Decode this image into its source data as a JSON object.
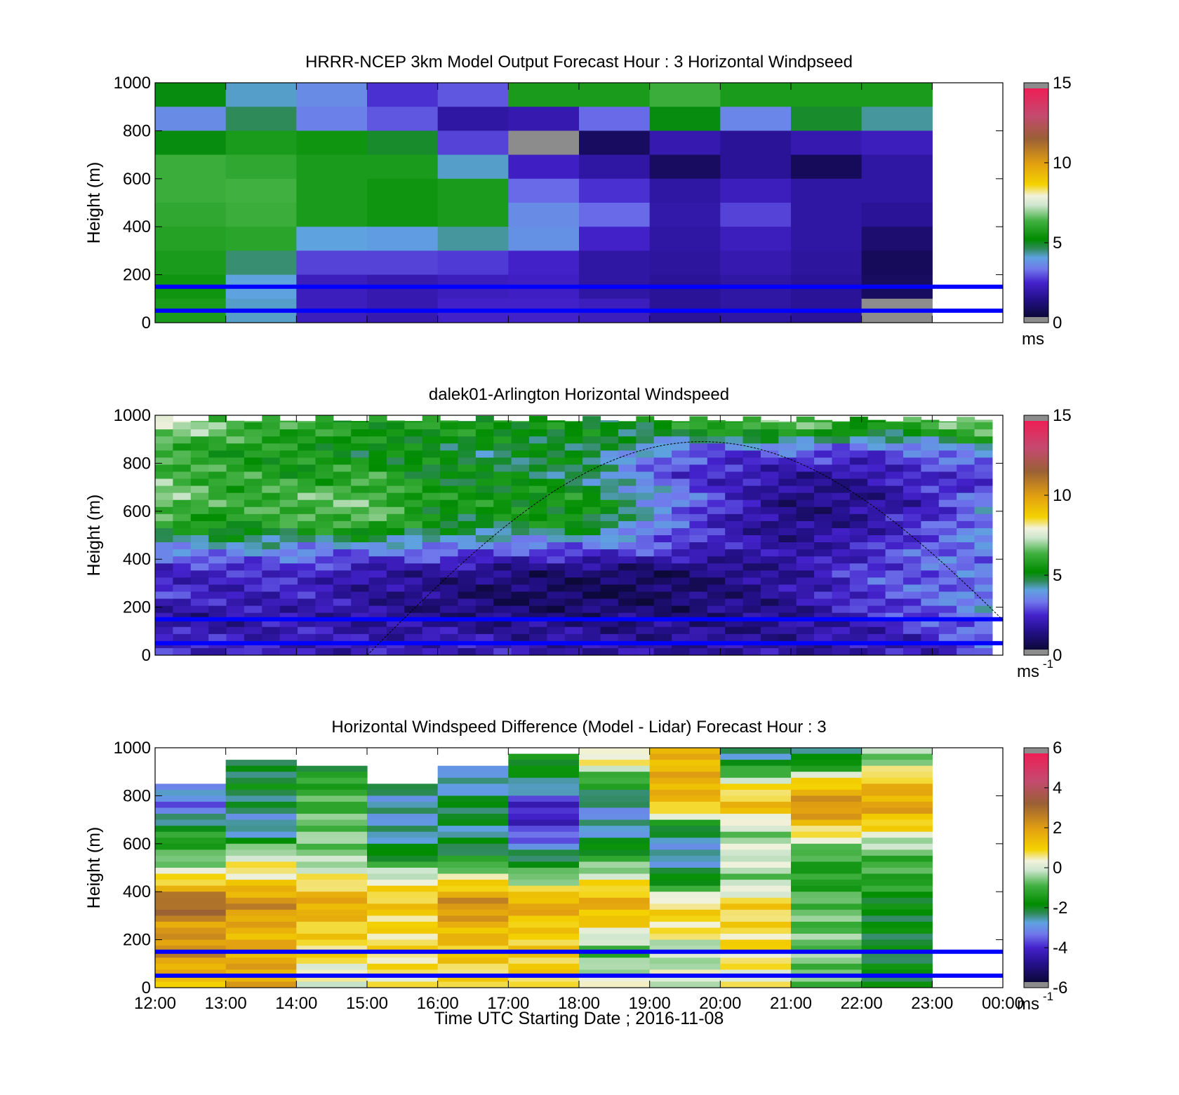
{
  "figure": {
    "xlabel": "Time UTC  Starting Date ; 2016-11-08",
    "x_tick_labels": [
      "12:00",
      "13:00",
      "14:00",
      "15:00",
      "16:00",
      "17:00",
      "18:00",
      "19:00",
      "20:00",
      "21:00",
      "22:00",
      "23:00",
      "00:00"
    ]
  },
  "chart_data": [
    {
      "type": "heatmap",
      "title": "HRRR-NCEP 3km Model Output   Forecast Hour : 3 Horizontal Windpseed",
      "xlabel": "",
      "ylabel": "Height (m)",
      "x_range": [
        "12:00",
        "00:00"
      ],
      "ylim": [
        0,
        1000
      ],
      "y_ticks": [
        0,
        200,
        400,
        600,
        800,
        1000
      ],
      "colorbar": {
        "min": 0,
        "max": 15,
        "ticks": [
          0,
          5,
          10,
          15
        ],
        "unit": "ms",
        "unit_exp": ""
      },
      "hlines_m": [
        150,
        50
      ],
      "hline_color": "#0000ff",
      "columns": [
        "12:00",
        "13:00",
        "14:00",
        "15:00",
        "16:00",
        "17:00",
        "18:00",
        "19:00",
        "20:00",
        "21:00",
        "22:00"
      ],
      "rows_top_m": [
        1000,
        900,
        800,
        700,
        600,
        500,
        400,
        300,
        200,
        100
      ],
      "values": [
        [
          5.0,
          4.0,
          3.5,
          2.4,
          2.8,
          5.6,
          5.6,
          6.2,
          5.6,
          5.6,
          5.6
        ],
        [
          3.5,
          4.5,
          3.3,
          2.8,
          1.6,
          1.8,
          3.0,
          5.0,
          3.4,
          4.8,
          4.2
        ],
        [
          5.0,
          5.6,
          5.4,
          4.8,
          2.6,
          null,
          0.6,
          1.8,
          1.4,
          1.8,
          2.0
        ],
        [
          6.2,
          6.0,
          5.6,
          5.6,
          4.0,
          2.1,
          1.6,
          0.6,
          1.4,
          0.5,
          1.6
        ],
        [
          6.2,
          6.3,
          5.6,
          5.4,
          5.6,
          3.0,
          2.4,
          1.6,
          2.0,
          1.6,
          1.6
        ],
        [
          6.0,
          6.2,
          5.6,
          5.4,
          5.6,
          3.5,
          3.0,
          1.7,
          2.6,
          1.6,
          1.4
        ],
        [
          5.8,
          5.9,
          3.9,
          3.8,
          4.2,
          3.6,
          2.2,
          1.6,
          2.0,
          1.6,
          0.8
        ],
        [
          5.6,
          4.4,
          2.6,
          2.6,
          2.5,
          2.2,
          1.6,
          1.5,
          1.8,
          1.5,
          0.5
        ],
        [
          5.4,
          3.9,
          2.0,
          1.8,
          2.0,
          2.1,
          1.6,
          1.4,
          1.6,
          1.4,
          0.6
        ],
        [
          5.6,
          4.0,
          2.0,
          1.8,
          2.2,
          2.2,
          2.0,
          1.4,
          1.6,
          1.4,
          null
        ]
      ]
    },
    {
      "type": "heatmap",
      "title": "dalek01-Arlington  Horizontal Windspeed",
      "xlabel": "",
      "ylabel": "Height (m)",
      "x_range": [
        "12:00",
        "00:00"
      ],
      "ylim": [
        0,
        1000
      ],
      "y_ticks": [
        0,
        200,
        400,
        600,
        800,
        1000
      ],
      "colorbar": {
        "min": 0,
        "max": 15,
        "ticks": [
          0,
          5,
          10,
          15
        ],
        "unit": "ms",
        "unit_exp": "-1"
      },
      "hlines_m": [
        150,
        50
      ],
      "hline_color": "#0000ff",
      "overlay_curve": {
        "color": "#000000",
        "x_start": "15:00",
        "x_peak": "19:45",
        "y_peak_m": 890
      },
      "x_sample_hours": [
        0,
        1,
        2,
        3,
        4,
        5,
        6,
        7,
        8,
        9,
        10,
        11,
        11.8
      ],
      "levels_top_m": [
        1000,
        900,
        800,
        700,
        600,
        500,
        400,
        300,
        200,
        100
      ],
      "values": [
        [
          7.5,
          6.5,
          6.0,
          5.5,
          5.5,
          5.5,
          5.0,
          5.0,
          6.0,
          6.5,
          5.5,
          6.0,
          7.0
        ],
        [
          6.0,
          5.5,
          5.5,
          5.0,
          5.0,
          4.5,
          5.0,
          3.5,
          2.5,
          3.0,
          2.5,
          3.0,
          4.0
        ],
        [
          6.5,
          6.0,
          5.5,
          6.0,
          5.0,
          5.0,
          4.5,
          3.0,
          2.0,
          1.5,
          1.5,
          2.5,
          2.0
        ],
        [
          7.0,
          6.0,
          6.5,
          6.5,
          5.5,
          5.5,
          5.5,
          4.0,
          2.5,
          1.0,
          1.2,
          2.0,
          3.5
        ],
        [
          6.0,
          5.5,
          6.0,
          6.5,
          5.0,
          5.0,
          5.5,
          3.5,
          2.0,
          1.0,
          1.5,
          2.5,
          3.5
        ],
        [
          3.5,
          4.0,
          3.5,
          3.5,
          3.5,
          3.0,
          3.0,
          3.0,
          2.0,
          1.5,
          2.0,
          3.0,
          3.5
        ],
        [
          2.0,
          2.0,
          2.5,
          1.5,
          1.5,
          1.0,
          0.8,
          0.6,
          1.0,
          1.5,
          2.5,
          3.0,
          3.0
        ],
        [
          2.5,
          2.0,
          2.0,
          1.5,
          1.0,
          0.6,
          0.5,
          0.5,
          1.0,
          1.5,
          2.5,
          3.0,
          3.5
        ],
        [
          1.2,
          1.5,
          1.8,
          1.5,
          1.2,
          1.0,
          1.0,
          1.0,
          1.0,
          1.2,
          2.0,
          2.8,
          3.5
        ],
        [
          2.5,
          2.0,
          2.0,
          1.8,
          2.0,
          1.8,
          1.6,
          1.5,
          1.5,
          1.5,
          1.6,
          2.0,
          3.0
        ]
      ]
    },
    {
      "type": "heatmap",
      "title": "Horizontal Windspeed Difference (Model - Lidar) Forecast Hour : 3",
      "xlabel": "Time UTC  Starting Date ; 2016-11-08",
      "ylabel": "Height (m)",
      "x_range": [
        "12:00",
        "00:00"
      ],
      "ylim": [
        0,
        1000
      ],
      "y_ticks": [
        0,
        200,
        400,
        600,
        800,
        1000
      ],
      "colorbar": {
        "min": -6,
        "max": 6,
        "ticks": [
          -6,
          -4,
          -2,
          0,
          2,
          4,
          6
        ],
        "unit": "ms",
        "unit_exp": "-1"
      },
      "hlines_m": [
        150,
        50
      ],
      "hline_color": "#0000ff",
      "columns": [
        "12:00",
        "13:00",
        "14:00",
        "15:00",
        "16:00",
        "17:00",
        "18:00",
        "19:00",
        "20:00",
        "21:00",
        "22:00"
      ],
      "column_top_m": [
        860,
        950,
        940,
        860,
        940,
        990,
        1000,
        1000,
        1000,
        1000,
        1000
      ],
      "levels_top_m": [
        1000,
        900,
        800,
        700,
        600,
        500,
        400,
        300,
        200,
        100
      ],
      "values": [
        [
          -2.5,
          -2.6,
          -2.2,
          -2.4,
          -2.6,
          -1.6,
          0.6,
          1.5,
          -2.5,
          -2.3,
          -0.6
        ],
        [
          -2.8,
          -2.0,
          -1.2,
          -2.5,
          -3.0,
          -2.4,
          -1.5,
          1.8,
          0.4,
          1.2,
          1.5
        ],
        [
          -3.6,
          -2.5,
          -1.0,
          -2.8,
          -2.0,
          -4.5,
          -3.0,
          1.2,
          1.5,
          2.5,
          2.0
        ],
        [
          -1.6,
          -3.0,
          -0.6,
          -2.8,
          -2.6,
          -4.0,
          -2.8,
          -2.5,
          -0.6,
          0.8,
          0.5
        ],
        [
          -1.0,
          0.2,
          -0.6,
          -2.0,
          -2.0,
          -2.5,
          -1.5,
          -3.0,
          0.2,
          -1.2,
          -1.0
        ],
        [
          0.8,
          0.8,
          0.5,
          0.4,
          0.6,
          -0.4,
          0.4,
          -2.0,
          -0.6,
          -1.5,
          -1.2
        ],
        [
          3.5,
          2.5,
          2.0,
          1.2,
          2.5,
          2.0,
          1.8,
          0.9,
          1.0,
          -0.8,
          -2.0
        ],
        [
          2.0,
          1.6,
          1.0,
          0.8,
          1.6,
          1.0,
          0.8,
          0.8,
          0.8,
          -0.8,
          -2.0
        ],
        [
          2.5,
          1.8,
          0.9,
          0.8,
          1.2,
          1.2,
          -1.2,
          -0.4,
          0.8,
          -0.6,
          -2.2
        ],
        [
          1.4,
          1.8,
          0.2,
          0.6,
          0.8,
          1.0,
          0.1,
          0.1,
          0.3,
          -0.8,
          -2.0
        ]
      ]
    }
  ]
}
